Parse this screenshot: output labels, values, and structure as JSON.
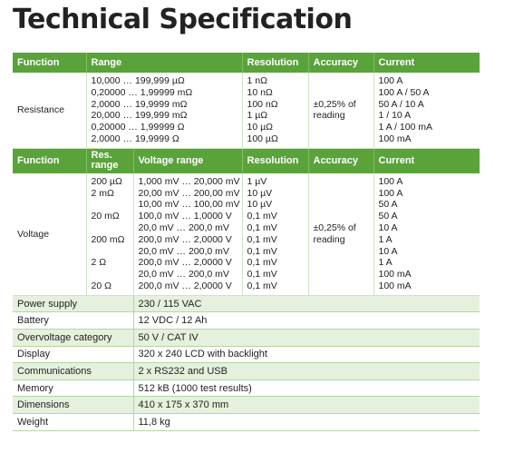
{
  "title": "Technical Specification",
  "resistance_table": {
    "headers": [
      "Function",
      "Range",
      "Resolution",
      "Accuracy",
      "Current"
    ],
    "function": "Resistance",
    "ranges": [
      "10,000 … 199,999 µΩ",
      "0,20000 … 1,99999 mΩ",
      "2,0000 … 19,9999 mΩ",
      "20,000 … 199,999 mΩ",
      "0,20000 … 1,99999 Ω",
      "2,0000 … 19,9999 Ω"
    ],
    "resolutions": [
      "1 nΩ",
      "10 nΩ",
      "100 nΩ",
      "1 µΩ",
      "10 µΩ",
      "100 µΩ"
    ],
    "accuracy": [
      "±0,25% of",
      "reading"
    ],
    "currents": [
      "100 A",
      "100 A / 50 A",
      "50 A / 10 A",
      "1 / 10 A",
      "1 A / 100 mA",
      "100 mA"
    ]
  },
  "voltage_table": {
    "headers": [
      "Function",
      "Res. range",
      "Voltage range",
      "Resolution",
      "Accuracy",
      "Current"
    ],
    "function": "Voltage",
    "res_ranges": [
      "200 µΩ",
      "2 mΩ",
      "",
      "20 mΩ",
      "",
      "200 mΩ",
      "",
      "2 Ω",
      "",
      "20 Ω"
    ],
    "voltage_ranges": [
      "1,000 mV … 20,000 mV",
      "20,00 mV … 200,00 mV",
      "10,00 mV … 100,00 mV",
      "100,0 mV … 1,0000 V",
      "20,0 mV … 200,0 mV",
      "200,0 mV … 2,0000 V",
      "20,0 mV … 200,0 mV",
      "200,0 mV … 2,0000 V",
      "20,0 mV … 200,0 mV",
      "200,0 mV … 2,0000 V"
    ],
    "resolutions": [
      "1 µV",
      "10 µV",
      "10 µV",
      "0,1 mV",
      "0,1 mV",
      "0,1 mV",
      "0,1 mV",
      "0,1 mV",
      "0,1 mV",
      "0,1 mV"
    ],
    "accuracy": [
      "±0,25% of",
      "reading"
    ],
    "currents": [
      "100 A",
      "100 A",
      "50 A",
      "50 A",
      "10 A",
      "1 A",
      "10 A",
      "1 A",
      "100 mA",
      "100 mA"
    ]
  },
  "specs": [
    {
      "label": "Power supply",
      "value": "230 / 115 VAC"
    },
    {
      "label": "Battery",
      "value": "12 VDC / 12 Ah"
    },
    {
      "label": "Overvoltage category",
      "value": "50 V / CAT IV"
    },
    {
      "label": "Display",
      "value": "320 x 240 LCD with backlight"
    },
    {
      "label": "Communications",
      "value": "2 x RS232 and USB"
    },
    {
      "label": "Memory",
      "value": "512 kB (1000 test results)"
    },
    {
      "label": "Dimensions",
      "value": "410  x 175 x 370  mm"
    },
    {
      "label": "Weight",
      "value": "11,8 kg"
    }
  ],
  "colors": {
    "header_green": "#59a33a",
    "row_tint": "#e5f1dc"
  }
}
